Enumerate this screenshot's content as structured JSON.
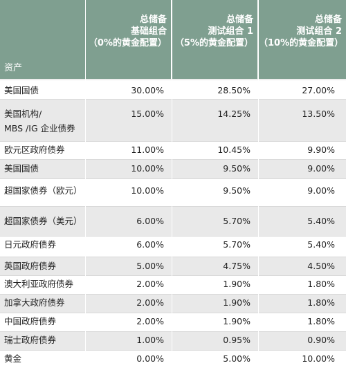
{
  "header": {
    "asset": "资产",
    "columns": [
      {
        "line1": "总储备",
        "line2": "基础组合",
        "line3": "（0%的黄金配置）"
      },
      {
        "line1": "总储备",
        "line2": "测试组合 1",
        "line3": "（5%的黄金配置）"
      },
      {
        "line1": "总储备",
        "line2": "测试组合 2",
        "line3": "（10%的黄金配置）"
      }
    ]
  },
  "rows": [
    {
      "asset": "美国国债",
      "asset2": "",
      "v1": "30.00%",
      "v2": "28.50%",
      "v3": "27.00%"
    },
    {
      "asset": "美国机构/",
      "asset2": "MBS /IG 企业债券",
      "v1": "15.00%",
      "v2": "14.25%",
      "v3": "13.50%"
    },
    {
      "asset": "欧元区政府债券",
      "asset2": "",
      "v1": "11.00%",
      "v2": "10.45%",
      "v3": "9.90%"
    },
    {
      "asset": "美国国债",
      "asset2": "",
      "v1": "10.00%",
      "v2": "9.50%",
      "v3": "9.00%"
    },
    {
      "asset": "超国家债券（欧元）",
      "asset2": "",
      "v1": "10.00%",
      "v2": "9.50%",
      "v3": "9.00%"
    },
    {
      "asset": "超国家债券（美元）",
      "asset2": "",
      "v1": "6.00%",
      "v2": "5.70%",
      "v3": "5.40%"
    },
    {
      "asset": "日元政府债券",
      "asset2": "",
      "v1": "6.00%",
      "v2": "5.70%",
      "v3": "5.40%"
    },
    {
      "asset": "英国政府债券",
      "asset2": "",
      "v1": "5.00%",
      "v2": "4.75%",
      "v3": "4.50%"
    },
    {
      "asset": "澳大利亚政府债券",
      "asset2": "",
      "v1": "2.00%",
      "v2": "1.90%",
      "v3": "1.80%"
    },
    {
      "asset": "加拿大政府债券",
      "asset2": "",
      "v1": "2.00%",
      "v2": "1.90%",
      "v3": "1.80%"
    },
    {
      "asset": "中国政府债券",
      "asset2": "",
      "v1": "2.00%",
      "v2": "1.90%",
      "v3": "1.80%"
    },
    {
      "asset": "瑞士政府债券",
      "asset2": "",
      "v1": "1.00%",
      "v2": "0.95%",
      "v3": "0.90%"
    },
    {
      "asset": "黄金",
      "asset2": "",
      "v1": "0.00%",
      "v2": "5.00%",
      "v3": "10.00%"
    }
  ]
}
